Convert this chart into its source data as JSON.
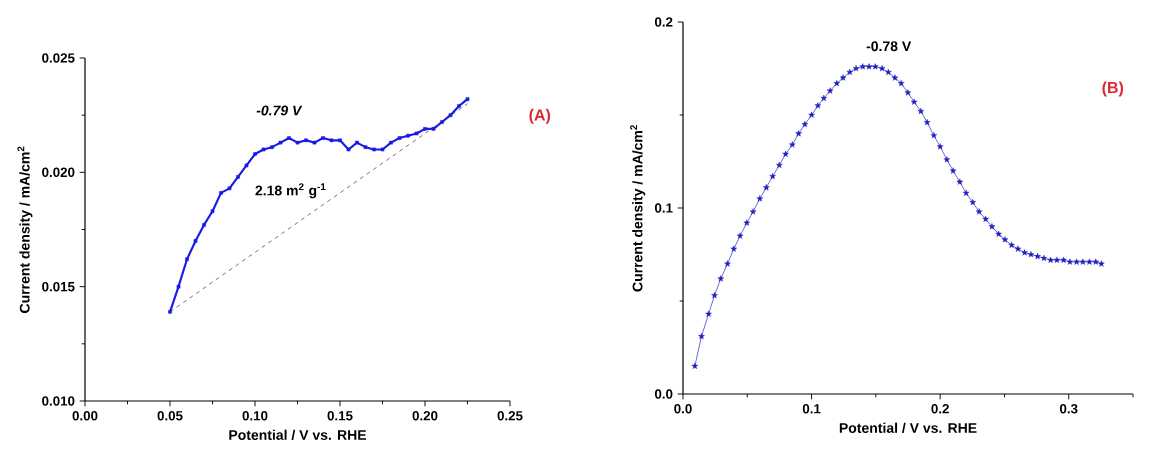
{
  "chart_data": [
    {
      "type": "line",
      "xlabel": "Potential / V vs. RHE",
      "ylabel": "Current density / mA/cm$^{2}$",
      "xlim": [
        0,
        0.25
      ],
      "ylim": [
        0.01,
        0.025
      ],
      "xticks": [
        {
          "value": 0,
          "label": "0.00"
        },
        {
          "value": 0.025,
          "label": null
        },
        {
          "value": 0.05,
          "label": "0.05"
        },
        {
          "value": 0.075,
          "label": null
        },
        {
          "value": 0.1,
          "label": "0.10"
        },
        {
          "value": 0.125,
          "label": null
        },
        {
          "value": 0.15,
          "label": "0.15"
        },
        {
          "value": 0.175,
          "label": null
        },
        {
          "value": 0.2,
          "label": "0.20"
        },
        {
          "value": 0.225,
          "label": null
        },
        {
          "value": 0.25,
          "label": "0.25"
        }
      ],
      "yticks": [
        {
          "value": 0.01,
          "label": "0.010"
        },
        {
          "value": 0.0125,
          "label": null
        },
        {
          "value": 0.015,
          "label": "0.015"
        },
        {
          "value": 0.0175,
          "label": null
        },
        {
          "value": 0.02,
          "label": "0.020"
        },
        {
          "value": 0.0225,
          "label": null
        },
        {
          "value": 0.025,
          "label": "0.025"
        }
      ],
      "series": [
        {
          "color": "#1a1ae6",
          "marker": "square",
          "line_style": "solid",
          "x": [
            0.05,
            0.055,
            0.06,
            0.065,
            0.07,
            0.075,
            0.08,
            0.085,
            0.09,
            0.095,
            0.1,
            0.105,
            0.11,
            0.115,
            0.12,
            0.125,
            0.13,
            0.135,
            0.14,
            0.145,
            0.15,
            0.155,
            0.16,
            0.165,
            0.17,
            0.175,
            0.18,
            0.185,
            0.19,
            0.195,
            0.2,
            0.205,
            0.21,
            0.215,
            0.22,
            0.225
          ],
          "values": [
            0.0139,
            0.015,
            0.0162,
            0.017,
            0.0177,
            0.0183,
            0.0191,
            0.0193,
            0.0198,
            0.0203,
            0.0208,
            0.021,
            0.0211,
            0.0213,
            0.0215,
            0.0213,
            0.0214,
            0.0213,
            0.0215,
            0.0214,
            0.0214,
            0.021,
            0.0213,
            0.0211,
            0.021,
            0.021,
            0.0213,
            0.0215,
            0.0216,
            0.0217,
            0.0219,
            0.0219,
            0.0222,
            0.0225,
            0.0229,
            0.0232
          ]
        },
        {
          "color": "#333333",
          "marker": "none",
          "line_style": "dashed",
          "x": [
            0.05,
            0.225
          ],
          "values": [
            0.0139,
            0.023
          ]
        }
      ],
      "annotations": [
        "-0.79 V",
        "2.18 m$^{2}$ g$^{-1}$",
        "(A)"
      ]
    },
    {
      "type": "line",
      "xlabel": "Potential / V vs. RHE",
      "ylabel": "Current density / mA/cm$^{2}$",
      "xlim": [
        0,
        0.35
      ],
      "ylim": [
        0,
        0.2
      ],
      "xticks": [
        {
          "value": 0,
          "label": "0.0"
        },
        {
          "value": 0.05,
          "label": null
        },
        {
          "value": 0.1,
          "label": "0.1"
        },
        {
          "value": 0.15,
          "label": null
        },
        {
          "value": 0.2,
          "label": "0.2"
        },
        {
          "value": 0.25,
          "label": null
        },
        {
          "value": 0.3,
          "label": "0.3"
        },
        {
          "value": 0.35,
          "label": null
        }
      ],
      "yticks": [
        {
          "value": 0,
          "label": "0.0"
        },
        {
          "value": 0.05,
          "label": null
        },
        {
          "value": 0.1,
          "label": "0.1"
        },
        {
          "value": 0.15,
          "label": null
        },
        {
          "value": 0.2,
          "label": "0.2"
        }
      ],
      "series": [
        {
          "color": "#2020c0",
          "marker": "star",
          "line_style": "solid",
          "x": [
            0.0092,
            0.0144,
            0.0199,
            0.0245,
            0.0294,
            0.0346,
            0.0395,
            0.0444,
            0.0496,
            0.0545,
            0.0597,
            0.0648,
            0.0697,
            0.0749,
            0.0798,
            0.085,
            0.0899,
            0.0948,
            0.1,
            0.1049,
            0.1095,
            0.1144,
            0.1196,
            0.1245,
            0.1297,
            0.1346,
            0.1398,
            0.1447,
            0.1496,
            0.1548,
            0.1597,
            0.1648,
            0.1697,
            0.1749,
            0.1798,
            0.185,
            0.1899,
            0.1951,
            0.2,
            0.2052,
            0.2101,
            0.2153,
            0.2202,
            0.2254,
            0.2303,
            0.2354,
            0.2403,
            0.2455,
            0.2504,
            0.2556,
            0.2605,
            0.2657,
            0.2706,
            0.2758,
            0.2807,
            0.2859,
            0.2908,
            0.296,
            0.3009,
            0.3061,
            0.311,
            0.3161,
            0.321,
            0.3254
          ],
          "values": [
            0.015,
            0.031,
            0.043,
            0.053,
            0.062,
            0.07,
            0.078,
            0.085,
            0.092,
            0.098,
            0.105,
            0.111,
            0.117,
            0.123,
            0.129,
            0.134,
            0.14,
            0.145,
            0.15,
            0.155,
            0.159,
            0.163,
            0.167,
            0.17,
            0.173,
            0.175,
            0.176,
            0.176,
            0.176,
            0.175,
            0.173,
            0.17,
            0.167,
            0.162,
            0.157,
            0.152,
            0.146,
            0.139,
            0.133,
            0.126,
            0.12,
            0.114,
            0.108,
            0.103,
            0.098,
            0.094,
            0.09,
            0.086,
            0.083,
            0.08,
            0.078,
            0.076,
            0.075,
            0.074,
            0.073,
            0.072,
            0.072,
            0.072,
            0.071,
            0.071,
            0.071,
            0.071,
            0.071,
            0.07
          ]
        }
      ],
      "annotations": [
        "-0.78 V",
        "(B)"
      ]
    }
  ]
}
